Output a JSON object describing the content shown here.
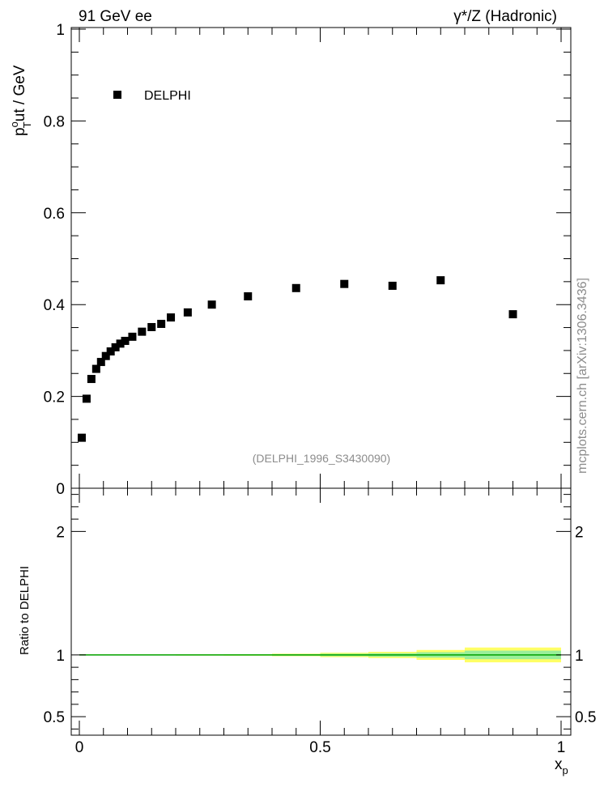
{
  "header": {
    "left": "91 GeV ee",
    "right": "γ*/Z (Hadronic)"
  },
  "watermark": "mcplots.cern.ch [arXiv:1306.3436]",
  "reference_label": "(DELPHI_1996_S3430090)",
  "chart_data": [
    {
      "type": "scatter",
      "ylabel": {
        "main": "p",
        "sup": "o",
        "sub": "T",
        "rest": "ut / GeV"
      },
      "xlim": [
        0,
        1
      ],
      "ylim": [
        0,
        1
      ],
      "y_ticks": [
        0,
        0.2,
        0.4,
        0.6,
        0.8,
        1
      ],
      "y_tick_labels": [
        "0",
        "0.2",
        "0.4",
        "0.6",
        "0.8",
        "1"
      ],
      "legend": {
        "position": "top-left",
        "entries": [
          "DELPHI"
        ]
      },
      "series": [
        {
          "name": "DELPHI",
          "marker": "square",
          "color": "#000000",
          "x": [
            0.005,
            0.015,
            0.025,
            0.035,
            0.045,
            0.055,
            0.065,
            0.075,
            0.085,
            0.095,
            0.11,
            0.13,
            0.15,
            0.17,
            0.19,
            0.225,
            0.275,
            0.35,
            0.45,
            0.55,
            0.65,
            0.75,
            0.9
          ],
          "y": [
            0.11,
            0.195,
            0.238,
            0.26,
            0.275,
            0.288,
            0.298,
            0.307,
            0.315,
            0.321,
            0.33,
            0.341,
            0.351,
            0.358,
            0.372,
            0.383,
            0.4,
            0.418,
            0.436,
            0.445,
            0.441,
            0.453,
            0.379
          ]
        }
      ]
    },
    {
      "type": "area",
      "ylabel": "Ratio to DELPHI",
      "xlabel": {
        "main": "x",
        "sub": "p"
      },
      "xlim": [
        0,
        1
      ],
      "ylim": [
        0.35,
        2.35
      ],
      "x_ticks": [
        0,
        0.5,
        1
      ],
      "x_tick_labels": [
        "0",
        "0.5",
        "1"
      ],
      "y_ticks": [
        0.5,
        1,
        2
      ],
      "y_tick_labels": [
        "0.5",
        "1",
        "2"
      ],
      "reference_line": {
        "y": 1,
        "color": "#00a000"
      },
      "bands": {
        "bin_edges": [
          0,
          0.1,
          0.2,
          0.3,
          0.4,
          0.5,
          0.6,
          0.7,
          0.8,
          1.0
        ],
        "yellow_halfwidth": [
          0.004,
          0.004,
          0.005,
          0.006,
          0.01,
          0.018,
          0.025,
          0.04,
          0.06
        ],
        "green_halfwidth": [
          0.002,
          0.002,
          0.003,
          0.004,
          0.006,
          0.01,
          0.014,
          0.022,
          0.035
        ],
        "yellow_color": "#ffff66",
        "green_color": "#99ee99"
      }
    }
  ]
}
